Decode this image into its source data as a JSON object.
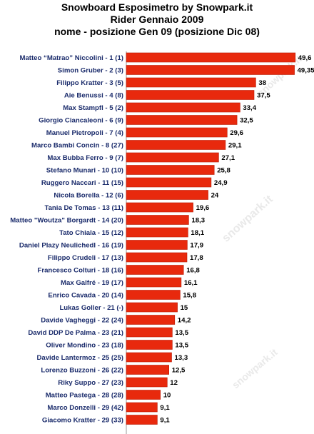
{
  "chart_data": {
    "type": "bar",
    "orientation": "horizontal",
    "title_lines": [
      "Snowboard Esposimetro by Snowpark.it",
      "Rider Gennaio 2009",
      "nome - posizione Gen 09 (posizione Dic 08)"
    ],
    "categories": [
      "Matteo “Matrao” Niccolini - 1 (1)",
      "Simon Gruber - 2 (3)",
      "Filippo Kratter - 3 (5)",
      "Aie Benussi - 4 (8)",
      "Max Stampfl - 5 (2)",
      "Giorgio Ciancaleoni - 6 (9)",
      "Manuel Pietropoli - 7 (4)",
      "Marco Bambi Concin - 8 (27)",
      "Max Bubba Ferro - 9 (7)",
      "Stefano Munari - 10 (10)",
      "Ruggero Naccari  - 11 (15)",
      "Nicola Borella - 12 (6)",
      "Tania De Tomas - 13 (11)",
      "Matteo \"Woutza\" Borgardt - 14 (20)",
      "Tato Chiala - 15 (12)",
      "Daniel Plazy Neulichedl - 16 (19)",
      "Filippo Crudeli - 17 (13)",
      "Francesco Colturi - 18 (16)",
      "Max Galfré - 19 (17)",
      "Enrico Cavada - 20 (14)",
      "Lukas Goller - 21 (-)",
      "Davide Vagheggi - 22 (24)",
      "David DDP De Palma - 23 (21)",
      "Oliver Mondino - 23 (18)",
      "Davide Lantermoz - 25 (25)",
      "Lorenzo Buzzoni - 26 (22)",
      "Riky Suppo - 27 (23)",
      "Matteo Pastega - 28 (28)",
      "Marco Donzelli - 29 (42)",
      "Giacomo Kratter - 29 (33)"
    ],
    "values": [
      49.6,
      49.35,
      38,
      37.5,
      33.4,
      32.5,
      29.6,
      29.1,
      27.1,
      25.8,
      24.9,
      24,
      19.6,
      18.3,
      18.1,
      17.9,
      17.8,
      16.8,
      16.1,
      15.8,
      15,
      14.2,
      13.5,
      13.5,
      13.3,
      12.5,
      12,
      10,
      9.1,
      9.1
    ],
    "value_labels": [
      "49,6",
      "49,35",
      "38",
      "37,5",
      "33,4",
      "32,5",
      "29,6",
      "29,1",
      "27,1",
      "25,8",
      "24,9",
      "24",
      "19,6",
      "18,3",
      "18,1",
      "17,9",
      "17,8",
      "16,8",
      "16,1",
      "15,8",
      "15",
      "14,2",
      "13,5",
      "13,5",
      "13,3",
      "12,5",
      "12",
      "10",
      "9,1",
      "9,1"
    ],
    "xlim": [
      0,
      53
    ],
    "grid": false,
    "legend": "none",
    "bar_color": "#e8290d",
    "bar_edge_color": "#b81c05",
    "label_color": "#1a2b6b",
    "value_color": "#000000",
    "watermark_text": "snowpark.it"
  }
}
